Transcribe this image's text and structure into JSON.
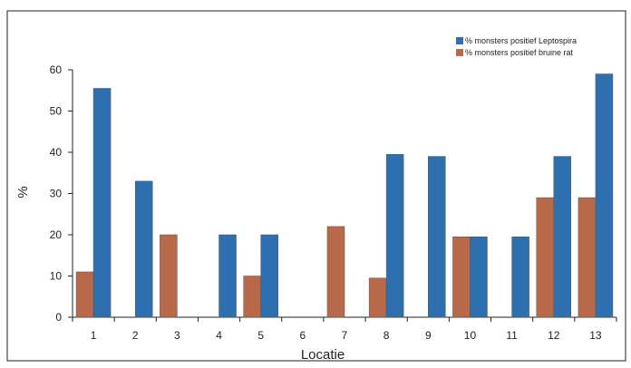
{
  "chart_data": {
    "type": "bar",
    "title": "",
    "xlabel": "Locatie",
    "ylabel": "%",
    "ylim": [
      0,
      60
    ],
    "yticks": [
      0,
      10,
      20,
      30,
      40,
      50,
      60
    ],
    "grid": false,
    "legend_position": "top-right",
    "categories": [
      "1",
      "2",
      "3",
      "4",
      "5",
      "6",
      "7",
      "8",
      "9",
      "10",
      "11",
      "12",
      "13"
    ],
    "series": [
      {
        "name": "% monsters positief bruine rat",
        "color": "#b8694a",
        "values": [
          11,
          0,
          20,
          0,
          10,
          0,
          22,
          9.5,
          0,
          19.5,
          0,
          29,
          29
        ]
      },
      {
        "name": "% monsters positief Leptospira",
        "color": "#2e6fb0",
        "values": [
          55.5,
          33,
          0,
          20,
          20,
          0,
          0,
          39.5,
          39,
          19.5,
          19.5,
          39,
          59
        ]
      }
    ]
  }
}
